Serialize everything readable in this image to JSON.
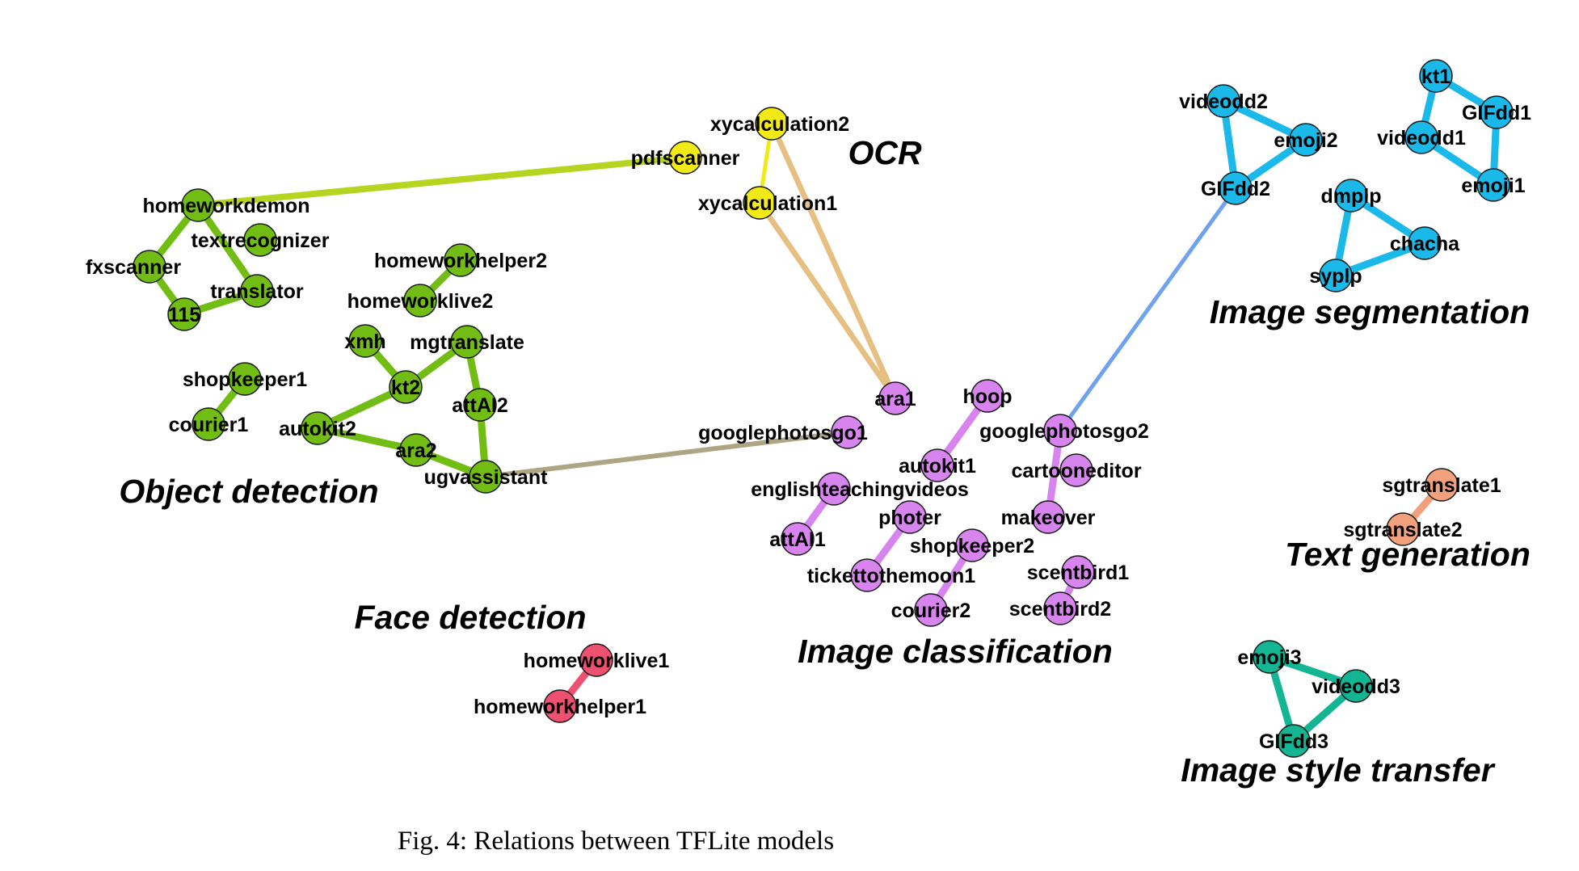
{
  "caption": "Fig. 4: Relations between TFLite models",
  "colors": {
    "object_detection": "#72bd14",
    "ocr": "#f2ea16",
    "ocr_edge": "#f2ea16",
    "image_classification": "#d884ef",
    "image_segmentation": "#1ab9ea",
    "text_generation": "#f2a17c",
    "face_detection": "#ee506f",
    "image_style_transfer": "#13b593",
    "link_od_ocr": "#b5d521",
    "link_ocr_ic": "#e6c082",
    "link_od_ic": "#ada584",
    "link_ic_is": "#6fa3f0"
  },
  "clusters": [
    {
      "id": "object_detection",
      "label": "Object detection"
    },
    {
      "id": "ocr",
      "label": "OCR"
    },
    {
      "id": "image_segmentation",
      "label": "Image segmentation"
    },
    {
      "id": "text_generation",
      "label": "Text generation"
    },
    {
      "id": "face_detection",
      "label": "Face detection"
    },
    {
      "id": "image_classification",
      "label": "Image classification"
    },
    {
      "id": "image_style_transfer",
      "label": "Image style transfer"
    }
  ],
  "nodes": [
    {
      "id": "homeworkdemon",
      "label": "homeworkdemon",
      "group": "object_detection"
    },
    {
      "id": "textrecognizer",
      "label": "textrecognizer",
      "group": "object_detection"
    },
    {
      "id": "fxscanner",
      "label": "fxscanner",
      "group": "object_detection"
    },
    {
      "id": "translator",
      "label": "translator",
      "group": "object_detection"
    },
    {
      "id": "115",
      "label": "115",
      "group": "object_detection"
    },
    {
      "id": "homeworkhelper2",
      "label": "homeworkhelper2",
      "group": "object_detection"
    },
    {
      "id": "homeworklive2",
      "label": "homeworklive2",
      "group": "object_detection"
    },
    {
      "id": "xmh",
      "label": "xmh",
      "group": "object_detection"
    },
    {
      "id": "mgtranslate",
      "label": "mgtranslate",
      "group": "object_detection"
    },
    {
      "id": "kt2",
      "label": "kt2",
      "group": "object_detection"
    },
    {
      "id": "attAI2",
      "label": "attAI2",
      "group": "object_detection"
    },
    {
      "id": "autokit2",
      "label": "autokit2",
      "group": "object_detection"
    },
    {
      "id": "ara2",
      "label": "ara2",
      "group": "object_detection"
    },
    {
      "id": "ugvassistant",
      "label": "ugvassistant",
      "group": "object_detection"
    },
    {
      "id": "shopkeeper1",
      "label": "shopkeeper1",
      "group": "object_detection"
    },
    {
      "id": "courier1",
      "label": "courier1",
      "group": "object_detection"
    },
    {
      "id": "xycalculation2",
      "label": "xycalculation2",
      "group": "ocr"
    },
    {
      "id": "pdfscanner",
      "label": "pdfscanner",
      "group": "ocr"
    },
    {
      "id": "xycalculation1",
      "label": "xycalculation1",
      "group": "ocr"
    },
    {
      "id": "ara1",
      "label": "ara1",
      "group": "image_classification"
    },
    {
      "id": "hoop",
      "label": "hoop",
      "group": "image_classification"
    },
    {
      "id": "googlephotosgo1",
      "label": "googlephotosgo1",
      "group": "image_classification"
    },
    {
      "id": "googlephotosgo2",
      "label": "googlephotosgo2",
      "group": "image_classification"
    },
    {
      "id": "autokit1",
      "label": "autokit1",
      "group": "image_classification"
    },
    {
      "id": "cartooneditor",
      "label": "cartooneditor",
      "group": "image_classification"
    },
    {
      "id": "englishteachingvideos",
      "label": "englishteachingvideos",
      "group": "image_classification"
    },
    {
      "id": "photer",
      "label": "photer",
      "group": "image_classification"
    },
    {
      "id": "makeover",
      "label": "makeover",
      "group": "image_classification"
    },
    {
      "id": "attAI1",
      "label": "attAI1",
      "group": "image_classification"
    },
    {
      "id": "shopkeeper2",
      "label": "shopkeeper2",
      "group": "image_classification"
    },
    {
      "id": "tickettothemoon1",
      "label": "tickettothemoon1",
      "group": "image_classification"
    },
    {
      "id": "scentbird1",
      "label": "scentbird1",
      "group": "image_classification"
    },
    {
      "id": "courier2",
      "label": "courier2",
      "group": "image_classification"
    },
    {
      "id": "scentbird2",
      "label": "scentbird2",
      "group": "image_classification"
    },
    {
      "id": "videodd2",
      "label": "videodd2",
      "group": "image_segmentation"
    },
    {
      "id": "emoji2",
      "label": "emoji2",
      "group": "image_segmentation"
    },
    {
      "id": "GIFdd2",
      "label": "GIFdd2",
      "group": "image_segmentation"
    },
    {
      "id": "kt1",
      "label": "kt1",
      "group": "image_segmentation"
    },
    {
      "id": "GIFdd1",
      "label": "GIFdd1",
      "group": "image_segmentation"
    },
    {
      "id": "videodd1",
      "label": "videodd1",
      "group": "image_segmentation"
    },
    {
      "id": "emoji1",
      "label": "emoji1",
      "group": "image_segmentation"
    },
    {
      "id": "dmplp",
      "label": "dmplp",
      "group": "image_segmentation"
    },
    {
      "id": "chacha",
      "label": "chacha",
      "group": "image_segmentation"
    },
    {
      "id": "syplp",
      "label": "syplp",
      "group": "image_segmentation"
    },
    {
      "id": "sgtranslate1",
      "label": "sgtranslate1",
      "group": "text_generation"
    },
    {
      "id": "sgtranslate2",
      "label": "sgtranslate2",
      "group": "text_generation"
    },
    {
      "id": "homeworklive1",
      "label": "homeworklive1",
      "group": "face_detection"
    },
    {
      "id": "homeworkhelper1",
      "label": "homeworkhelper1",
      "group": "face_detection"
    },
    {
      "id": "emoji3",
      "label": "emoji3",
      "group": "image_style_transfer"
    },
    {
      "id": "videodd3",
      "label": "videodd3",
      "group": "image_style_transfer"
    },
    {
      "id": "GIFdd3",
      "label": "GIFdd3",
      "group": "image_style_transfer"
    }
  ],
  "edges": [
    {
      "from": "homeworkdemon",
      "to": "pdfscanner",
      "color": "link_od_ocr"
    },
    {
      "from": "xycalculation2",
      "to": "ara1",
      "color": "link_ocr_ic"
    },
    {
      "from": "xycalculation1",
      "to": "ara1",
      "color": "link_ocr_ic"
    },
    {
      "from": "ugvassistant",
      "to": "googlephotosgo1",
      "color": "link_od_ic"
    },
    {
      "from": "googlephotosgo2",
      "to": "GIFdd2",
      "color": "link_ic_is"
    },
    {
      "from": "xycalculation2",
      "to": "xycalculation1",
      "color": "ocr_edge"
    },
    {
      "from": "homeworkdemon",
      "to": "fxscanner",
      "color": "object_detection"
    },
    {
      "from": "homeworkdemon",
      "to": "translator",
      "color": "object_detection"
    },
    {
      "from": "fxscanner",
      "to": "115",
      "color": "object_detection"
    },
    {
      "from": "115",
      "to": "translator",
      "color": "object_detection"
    },
    {
      "from": "homeworkhelper2",
      "to": "homeworklive2",
      "color": "object_detection"
    },
    {
      "from": "xmh",
      "to": "kt2",
      "color": "object_detection"
    },
    {
      "from": "mgtranslate",
      "to": "kt2",
      "color": "object_detection"
    },
    {
      "from": "mgtranslate",
      "to": "attAI2",
      "color": "object_detection"
    },
    {
      "from": "attAI2",
      "to": "ugvassistant",
      "color": "object_detection"
    },
    {
      "from": "kt2",
      "to": "autokit2",
      "color": "object_detection"
    },
    {
      "from": "autokit2",
      "to": "ara2",
      "color": "object_detection"
    },
    {
      "from": "ara2",
      "to": "ugvassistant",
      "color": "object_detection"
    },
    {
      "from": "shopkeeper1",
      "to": "courier1",
      "color": "object_detection"
    },
    {
      "from": "hoop",
      "to": "autokit1",
      "color": "image_classification"
    },
    {
      "from": "googlephotosgo2",
      "to": "makeover",
      "color": "image_classification"
    },
    {
      "from": "englishteachingvideos",
      "to": "attAI1",
      "color": "image_classification"
    },
    {
      "from": "photer",
      "to": "tickettothemoon1",
      "color": "image_classification"
    },
    {
      "from": "shopkeeper2",
      "to": "courier2",
      "color": "image_classification"
    },
    {
      "from": "scentbird1",
      "to": "scentbird2",
      "color": "image_classification"
    },
    {
      "from": "videodd2",
      "to": "emoji2",
      "color": "image_segmentation"
    },
    {
      "from": "videodd2",
      "to": "GIFdd2",
      "color": "image_segmentation"
    },
    {
      "from": "emoji2",
      "to": "GIFdd2",
      "color": "image_segmentation"
    },
    {
      "from": "kt1",
      "to": "GIFdd1",
      "color": "image_segmentation"
    },
    {
      "from": "GIFdd1",
      "to": "emoji1",
      "color": "image_segmentation"
    },
    {
      "from": "videodd1",
      "to": "emoji1",
      "color": "image_segmentation"
    },
    {
      "from": "videodd1",
      "to": "kt1",
      "color": "image_segmentation"
    },
    {
      "from": "dmplp",
      "to": "chacha",
      "color": "image_segmentation"
    },
    {
      "from": "dmplp",
      "to": "syplp",
      "color": "image_segmentation"
    },
    {
      "from": "syplp",
      "to": "chacha",
      "color": "image_segmentation"
    },
    {
      "from": "sgtranslate1",
      "to": "sgtranslate2",
      "color": "text_generation"
    },
    {
      "from": "homeworklive1",
      "to": "homeworkhelper1",
      "color": "face_detection"
    },
    {
      "from": "emoji3",
      "to": "videodd3",
      "color": "image_style_transfer"
    },
    {
      "from": "emoji3",
      "to": "GIFdd3",
      "color": "image_style_transfer"
    },
    {
      "from": "videodd3",
      "to": "GIFdd3",
      "color": "image_style_transfer"
    }
  ]
}
